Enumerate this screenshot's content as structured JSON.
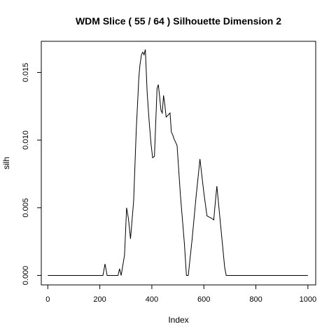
{
  "chart_data": {
    "type": "line",
    "title": "WDM Slice ( 55 / 64 )  Silhouette Dimension 2",
    "xlabel": "Index",
    "ylabel": "silh",
    "xlim": [
      -25,
      1030
    ],
    "ylim": [
      -0.0007,
      0.0173
    ],
    "x_ticks": [
      0,
      200,
      400,
      600,
      800,
      1000
    ],
    "x_tick_labels": [
      "0",
      "200",
      "400",
      "600",
      "800",
      "1000"
    ],
    "y_ticks": [
      0.0,
      0.005,
      0.01,
      0.015
    ],
    "y_tick_labels": [
      "0.000",
      "0.005",
      "0.010",
      "0.015"
    ],
    "grid": false,
    "series": [
      {
        "x": [
          0,
          100,
          212,
          220,
          228,
          270,
          276,
          282,
          295,
          303,
          310,
          318,
          330,
          340,
          350,
          354,
          360,
          365,
          370,
          375,
          382,
          390,
          397,
          403,
          410,
          415,
          420,
          425,
          430,
          435,
          440,
          445,
          450,
          455,
          460,
          465,
          470,
          475,
          480,
          485,
          490,
          497,
          510,
          525,
          533,
          540,
          555,
          570,
          585,
          600,
          612,
          632,
          638,
          645,
          650,
          660,
          670,
          680,
          686,
          700,
          800,
          1000
        ],
        "y": [
          0.0,
          0.0,
          0.0,
          0.00085,
          0.0,
          0.0,
          0.0005,
          0.0,
          0.0015,
          0.005,
          0.0042,
          0.0027,
          0.0055,
          0.0107,
          0.0146,
          0.0155,
          0.0163,
          0.0165,
          0.0163,
          0.0167,
          0.0135,
          0.0113,
          0.0097,
          0.0087,
          0.0088,
          0.0113,
          0.0138,
          0.0141,
          0.0132,
          0.0122,
          0.012,
          0.0133,
          0.0126,
          0.0117,
          0.0118,
          0.0119,
          0.012,
          0.0106,
          0.0104,
          0.0101,
          0.0099,
          0.0096,
          0.0059,
          0.0024,
          0.0,
          0.0,
          0.0027,
          0.0058,
          0.0086,
          0.0061,
          0.0044,
          0.0042,
          0.0041,
          0.0056,
          0.0066,
          0.0046,
          0.0026,
          0.0006,
          0.0,
          0.0,
          0.0,
          0.0
        ]
      }
    ]
  }
}
